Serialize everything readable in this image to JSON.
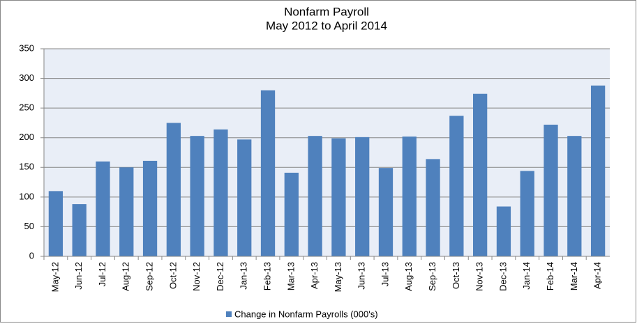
{
  "chart_data": {
    "type": "bar",
    "title": "Nonfarm Payroll",
    "subtitle": "May  2012  to  April 2014",
    "categories": [
      "May-12",
      "Jun-12",
      "Jul-12",
      "Aug-12",
      "Sep-12",
      "Oct-12",
      "Nov-12",
      "Dec-12",
      "Jan-13",
      "Feb-13",
      "Mar-13",
      "Apr-13",
      "May-13",
      "Jun-13",
      "Jul-13",
      "Aug-13",
      "Sep-13",
      "Oct-13",
      "Nov-13",
      "Dec-13",
      "Jan-14",
      "Feb-14",
      "Mar-14",
      "Apr-14"
    ],
    "series": [
      {
        "name": "Change in  Nonfarm Payrolls (000's)",
        "color": "#4f81bd",
        "values": [
          110,
          88,
          160,
          150,
          161,
          225,
          203,
          214,
          197,
          280,
          141,
          203,
          199,
          201,
          149,
          202,
          164,
          237,
          274,
          84,
          144,
          222,
          203,
          288
        ]
      }
    ],
    "ylim": [
      0,
      350
    ],
    "yticks": [
      0,
      50,
      100,
      150,
      200,
      250,
      300,
      350
    ],
    "grid": true,
    "legend": "bottom"
  }
}
